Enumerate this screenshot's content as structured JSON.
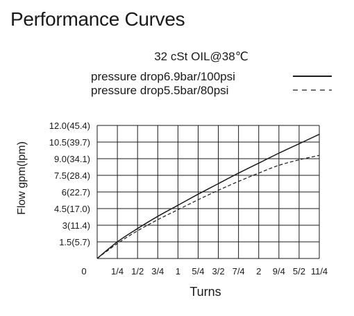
{
  "page": {
    "title": "Performance Curves"
  },
  "chart_data": {
    "type": "line",
    "subtitle": "32 cSt OIL@38℃",
    "xlabel": "Turns",
    "ylabel": "Flow gpm(lpm)",
    "x_ticks": [
      0,
      0.25,
      0.5,
      0.75,
      1,
      1.25,
      1.5,
      1.75,
      2,
      2.25,
      2.5,
      2.75
    ],
    "x_tick_labels": [
      "0",
      "1/4",
      "1/2",
      "3/4",
      "1",
      "5/4",
      "3/2",
      "7/4",
      "2",
      "9/4",
      "5/2",
      "11/4"
    ],
    "xlim": [
      0,
      2.75
    ],
    "y_ticks": [
      0,
      1.5,
      3,
      4.5,
      6,
      7.5,
      9,
      10.5,
      12
    ],
    "y_tick_labels": [
      "",
      "1.5(5.7)",
      "3(11.4)",
      "4.5(17.0)",
      "6(22.7)",
      "7.5(28.4)",
      "9.0(34.1)",
      "10.5(39.7)",
      "12.0(45.4)"
    ],
    "ylim": [
      0,
      12
    ],
    "grid": true,
    "legend_position": "top-right",
    "series": [
      {
        "name": "pressure drop6.9bar/100psi",
        "style": "solid",
        "color": "#1a1a1a",
        "x": [
          0,
          0.25,
          0.5,
          0.75,
          1,
          1.25,
          1.5,
          1.75,
          2,
          2.25,
          2.5,
          2.75
        ],
        "y": [
          0,
          1.5,
          2.7,
          3.8,
          4.8,
          5.8,
          6.75,
          7.7,
          8.6,
          9.5,
          10.35,
          11.2
        ]
      },
      {
        "name": "pressure drop5.5bar/80psi",
        "style": "dashed",
        "color": "#1a1a1a",
        "x": [
          0,
          0.25,
          0.5,
          0.75,
          1,
          1.25,
          1.5,
          1.75,
          2,
          2.25,
          2.5,
          2.75
        ],
        "y": [
          0,
          1.35,
          2.5,
          3.5,
          4.4,
          5.3,
          6.15,
          6.95,
          7.7,
          8.4,
          8.9,
          9.3
        ]
      }
    ]
  }
}
